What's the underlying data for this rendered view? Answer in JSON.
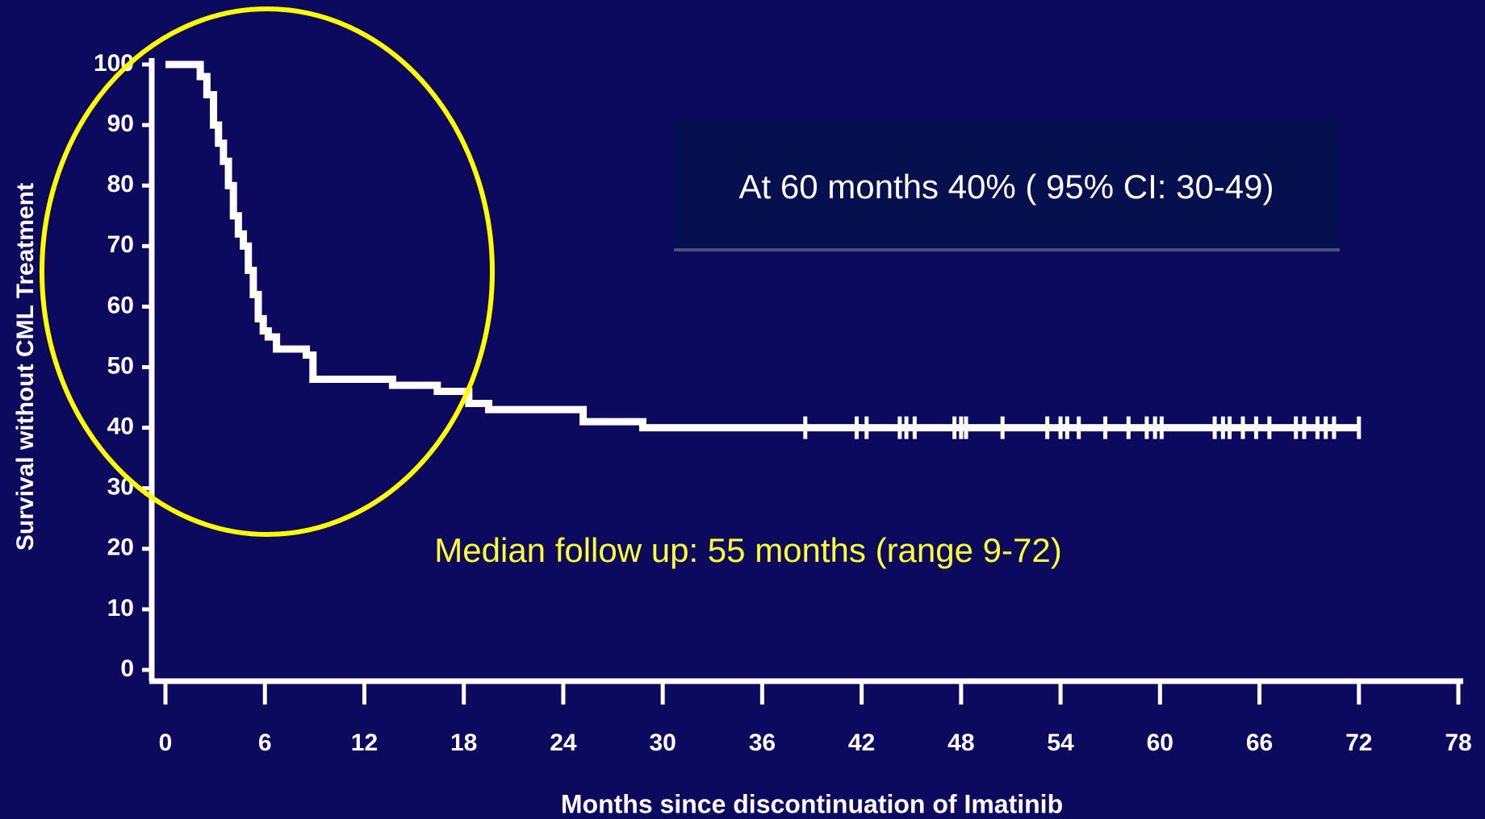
{
  "chart_data": {
    "type": "line",
    "step": "post",
    "xlabel": "Months since discontinuation of Imatinib",
    "ylabel": "Survival without CML Treatment",
    "xlim": [
      0,
      78
    ],
    "ylim": [
      0,
      100
    ],
    "xticks": [
      0,
      6,
      12,
      18,
      24,
      30,
      36,
      42,
      48,
      54,
      60,
      66,
      72,
      78
    ],
    "yticks": [
      0,
      10,
      20,
      30,
      40,
      50,
      60,
      70,
      80,
      90,
      100
    ],
    "series": [
      {
        "color": "#ffffff",
        "x": [
          0,
          2.1,
          2.5,
          2.9,
          3.2,
          3.5,
          3.8,
          4.1,
          4.4,
          4.7,
          5.0,
          5.3,
          5.6,
          5.9,
          6.2,
          6.7,
          8.5,
          8.9,
          13.7,
          16.4,
          18.3,
          19.5,
          25.2,
          28.8,
          72
        ],
        "values": [
          100,
          98,
          95,
          90,
          87,
          84,
          80,
          75,
          72,
          70,
          66,
          62,
          58,
          56,
          55,
          53,
          52,
          48,
          47,
          46,
          44,
          43,
          41,
          40,
          40
        ]
      },
      {
        "color": "#ffffff",
        "marker": "tick",
        "x": [
          38.6,
          41.7,
          42.3,
          44.3,
          44.7,
          45.2,
          47.6,
          48,
          48.3,
          50.5,
          53.2,
          54,
          54.4,
          55.1,
          56.7,
          58.1,
          59.2,
          59.7,
          60.1,
          63.3,
          63.8,
          64.2,
          65,
          65.8,
          66.6,
          68.2,
          68.7,
          69.5,
          70,
          70.5,
          72
        ],
        "values": [
          40,
          40,
          40,
          40,
          40,
          40,
          40,
          40,
          40,
          40,
          40,
          40,
          40,
          40,
          40,
          40,
          40,
          40,
          40,
          40,
          40,
          40,
          40,
          40,
          40,
          40,
          40,
          40,
          40,
          40,
          40
        ]
      }
    ],
    "annotations": [
      "At 60 months 40% ( 95% CI: 30-49)",
      "Median follow up: 55 months (range 9-72)"
    ]
  }
}
